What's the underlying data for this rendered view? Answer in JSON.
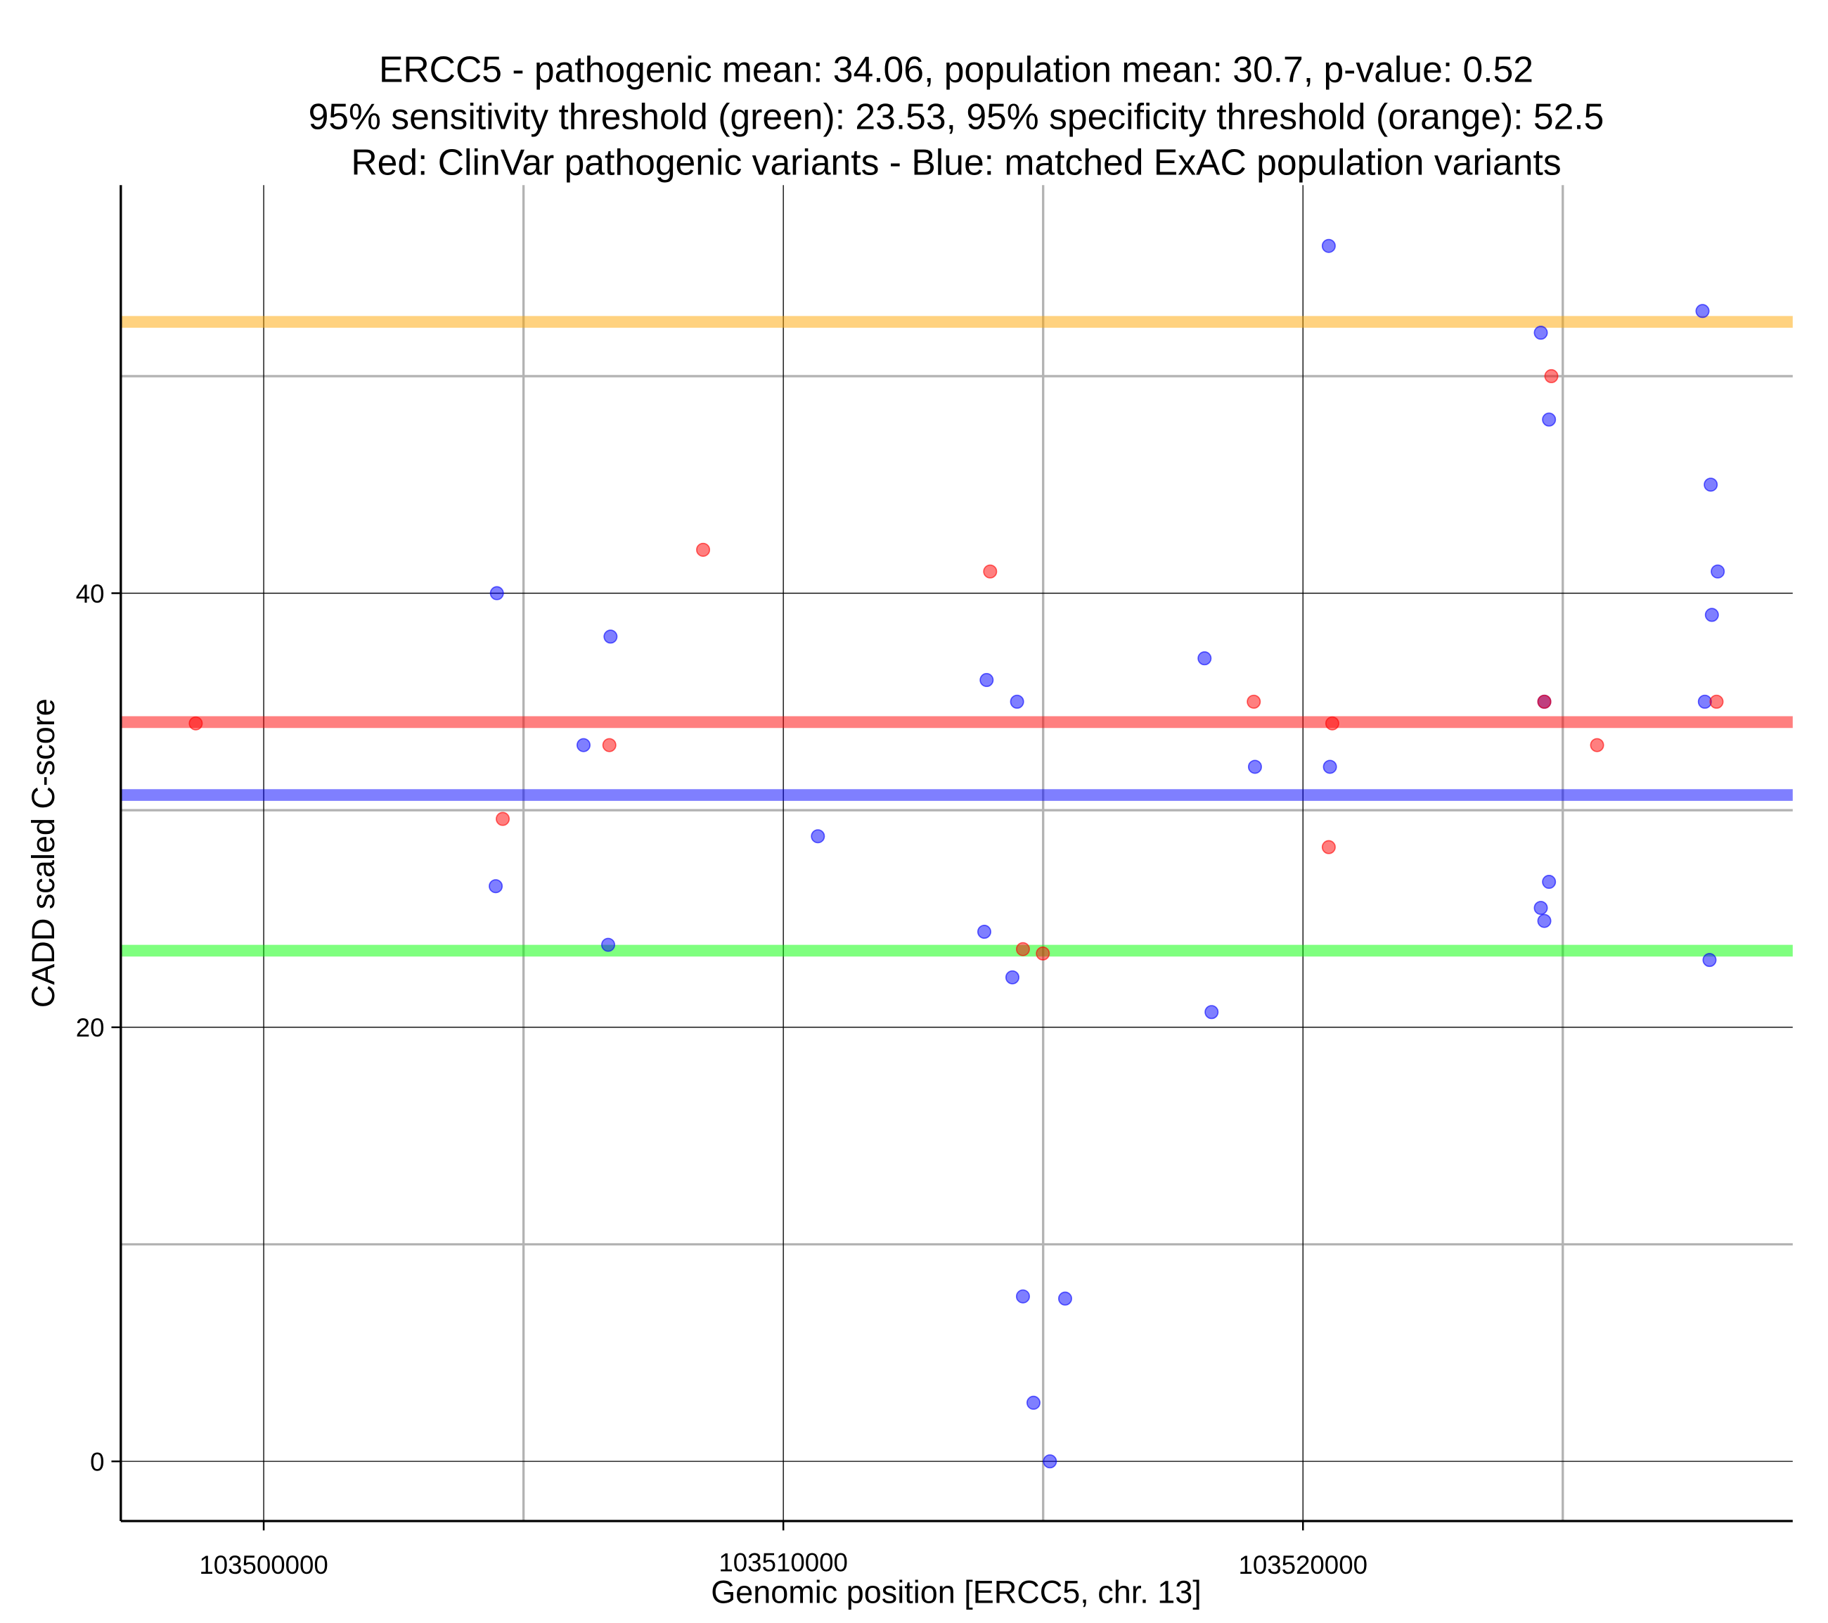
{
  "chart_data": {
    "type": "scatter",
    "title": [
      "ERCC5 - pathogenic mean: 34.06, population mean: 30.7, p-value: 0.52",
      "95% sensitivity threshold (green): 23.53, 95% specificity threshold (orange): 52.5",
      "Red: ClinVar pathogenic variants - Blue: matched ExAC population variants"
    ],
    "xlabel": "Genomic position [ERCC5, chr. 13]",
    "ylabel": "CADD scaled C-score",
    "xlim": [
      103497250,
      103529425
    ],
    "ylim": [
      -2.75,
      58.8
    ],
    "xticks": [
      103500000,
      103510000,
      103520000
    ],
    "xtick_labels": [
      "103500000",
      "103510000",
      "103520000"
    ],
    "xminor": [
      103505000,
      103515000,
      103525000
    ],
    "yticks": [
      0,
      20,
      40
    ],
    "ytick_labels": [
      "0",
      "20",
      "40"
    ],
    "yminor": [
      10,
      30,
      50
    ],
    "grid": true,
    "hlines": [
      {
        "name": "specificity-threshold",
        "value": 52.5,
        "color": "#ffa500"
      },
      {
        "name": "pathogenic-mean",
        "value": 34.06,
        "color": "#ff0000"
      },
      {
        "name": "population-mean",
        "value": 30.7,
        "color": "#0000ff"
      },
      {
        "name": "sensitivity-threshold",
        "value": 23.53,
        "color": "#00ff00"
      }
    ],
    "series": [
      {
        "name": "matched ExAC population variants",
        "color": "#0000ff",
        "points": [
          [
            103504487,
            40.0
          ],
          [
            103506674,
            38.0
          ],
          [
            103506155,
            33.0
          ],
          [
            103504465,
            26.5
          ],
          [
            103506629,
            23.8
          ],
          [
            103510665,
            28.8
          ],
          [
            103513912,
            36.0
          ],
          [
            103514498,
            35.0
          ],
          [
            103513867,
            24.4
          ],
          [
            103514408,
            22.3
          ],
          [
            103514611,
            7.6
          ],
          [
            103515423,
            7.5
          ],
          [
            103514814,
            2.7
          ],
          [
            103515130,
            0.0
          ],
          [
            103518106,
            37.0
          ],
          [
            103518241,
            20.7
          ],
          [
            103519076,
            32.0
          ],
          [
            103520496,
            56.0
          ],
          [
            103520519,
            32.0
          ],
          [
            103524577,
            52.0
          ],
          [
            103524735,
            48.0
          ],
          [
            103524645,
            35.0
          ],
          [
            103524735,
            26.7
          ],
          [
            103524577,
            25.5
          ],
          [
            103524645,
            24.9
          ],
          [
            103527689,
            53.0
          ],
          [
            103527847,
            45.0
          ],
          [
            103527982,
            41.0
          ],
          [
            103527869,
            39.0
          ],
          [
            103527734,
            35.0
          ],
          [
            103527824,
            23.1
          ]
        ]
      },
      {
        "name": "ClinVar pathogenic variants",
        "color": "#ff0000",
        "points": [
          [
            103498692,
            34.0
          ],
          [
            103504600,
            29.6
          ],
          [
            103506652,
            33.0
          ],
          [
            103508456,
            42.0
          ],
          [
            103513980,
            41.0
          ],
          [
            103514611,
            23.6
          ],
          [
            103514994,
            23.4
          ],
          [
            103519053,
            35.0
          ],
          [
            103520564,
            34.0
          ],
          [
            103520496,
            28.3
          ],
          [
            103524645,
            35.0
          ],
          [
            103524780,
            50.0
          ],
          [
            103525660,
            33.0
          ],
          [
            103527959,
            35.0
          ]
        ]
      }
    ]
  }
}
